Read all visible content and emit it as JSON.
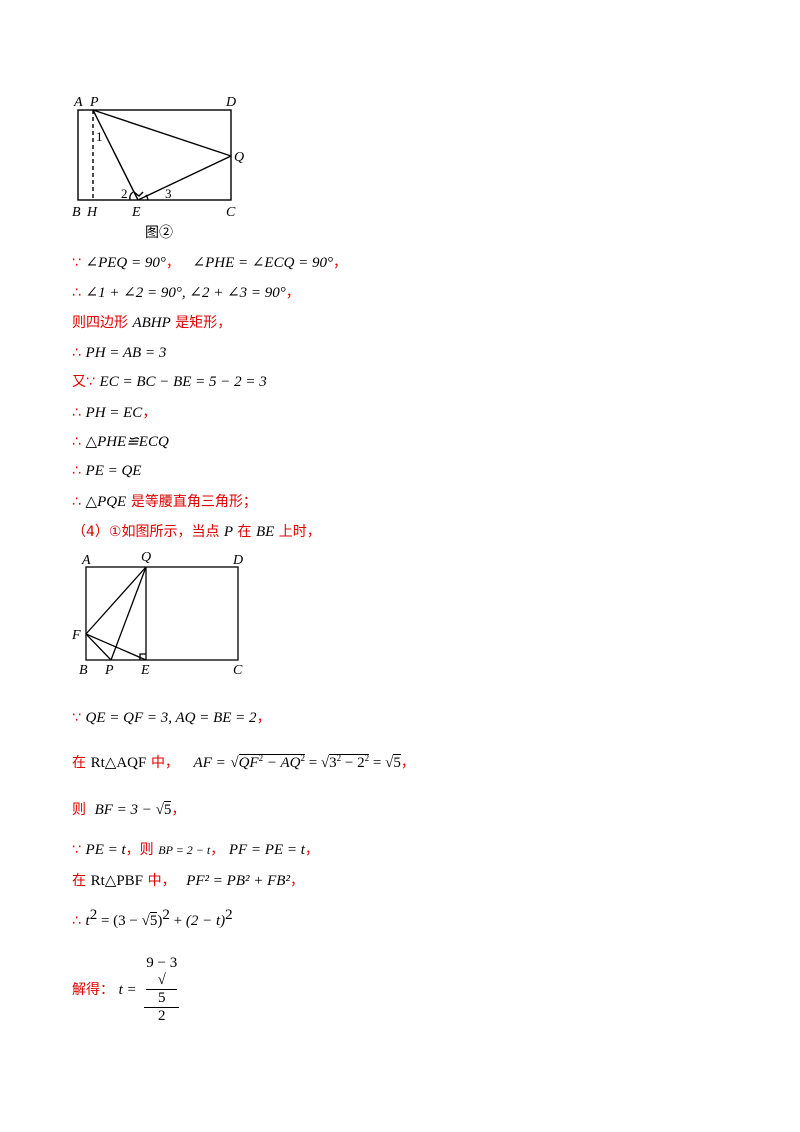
{
  "figure1": {
    "labels": {
      "A": "A",
      "P": "P",
      "D": "D",
      "Q": "Q",
      "B": "B",
      "H": "H",
      "E": "E",
      "C": "C"
    },
    "angles": {
      "a1": "1",
      "a2": "2",
      "a3": "3"
    },
    "caption": "图②"
  },
  "proof1": {
    "because": "∵",
    "therefore": "∴",
    "l1": {
      "a": "∠PEQ = 90°",
      "b": "∠PHE = ∠ECQ = 90°",
      "end": "，",
      "sep": "，"
    },
    "l2": {
      "a": "∠1 + ∠2 = 90°, ∠2 + ∠3 = 90°",
      "end": "，"
    },
    "l3": {
      "pre": "则四边形",
      "m": "ABHP",
      "post": "是矩形，"
    },
    "l4": {
      "m": "PH = AB = 3"
    },
    "l5": {
      "pre": "又",
      "m": "EC = BC − BE = 5 − 2 = 3"
    },
    "l6": {
      "m": "PH = EC",
      "end": "，"
    },
    "l7": {
      "m": "△PHE≌ECQ"
    },
    "l8": {
      "m": "PE = QE"
    },
    "l9": {
      "m": "△PQE",
      "post": "是等腰直角三角形；"
    }
  },
  "part4": {
    "intro_pre": "（4）①如图所示，当点",
    "p": "P",
    "intro_mid": "在",
    "be": "BE",
    "intro_post": "上时，"
  },
  "figure2": {
    "labels": {
      "A": "A",
      "Q": "Q",
      "D": "D",
      "F": "F",
      "B": "B",
      "P": "P",
      "E": "E",
      "C": "C"
    }
  },
  "proof2": {
    "l1": {
      "m": "QE = QF = 3, AQ = BE = 2",
      "end": "，"
    },
    "l2": {
      "pre": "在",
      "tri": "Rt△AQF",
      "mid": "中，",
      "af": "AF =",
      "rad1a": "QF",
      "rad1b": " − AQ",
      "eq1": " = ",
      "rad2a": "3",
      "rad2b": " − 2",
      "eq2": " = ",
      "rad3": "5",
      "end": "，"
    },
    "l3": {
      "pre": "则",
      "m": "BF = 3 − ",
      "rad": "5",
      "end": "，"
    },
    "l4": {
      "m1": "PE = t",
      "c1": "，则",
      "m2": "BP = 2 − t",
      "c2": "，",
      "m3": "PF = PE = t",
      "end": "，"
    },
    "l5": {
      "pre": "在",
      "tri": "Rt△PBF",
      "mid": "中，",
      "m": "PF² = PB² + FB²",
      "end": "，"
    },
    "l6": {
      "t": "t",
      "eq": " = ",
      "a": "(3 − ",
      "rad": "5",
      "b": ")",
      "plus": " + ",
      "c": "(2 − t)"
    },
    "l7": {
      "pre": "解得：",
      "t": "t =",
      "num_a": "9 − 3",
      "num_rad": "5",
      "den": "2"
    },
    "two": "2"
  }
}
